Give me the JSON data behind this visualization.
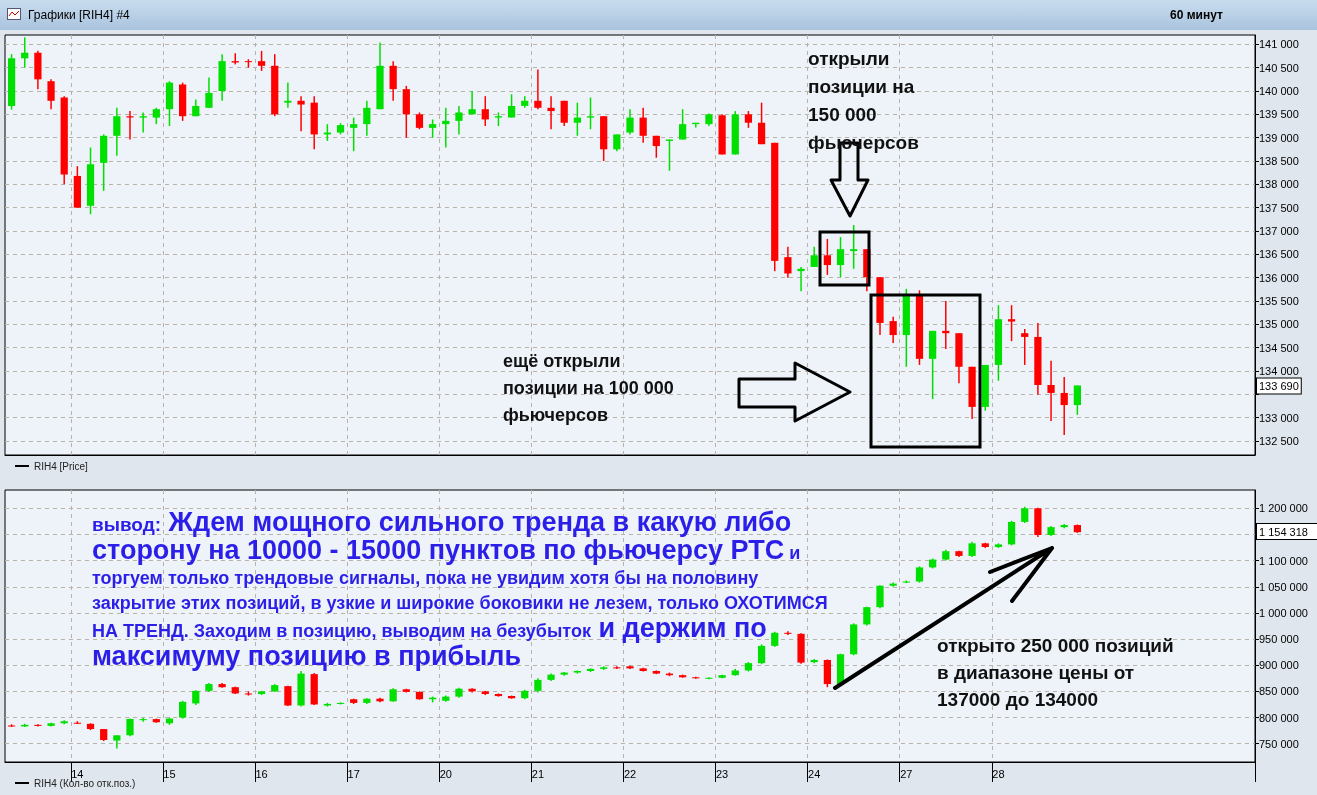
{
  "chart_data": [
    {
      "type": "candlestick",
      "title": "Графики [RIH4] #4",
      "subtitle": "60 минут",
      "categories": [
        null,
        null,
        null,
        null,
        null,
        "14",
        null,
        null,
        null,
        null,
        null,
        null,
        "15",
        null,
        null,
        null,
        null,
        null,
        null,
        "16",
        null,
        null,
        null,
        null,
        null,
        null,
        "17",
        null,
        null,
        null,
        null,
        null,
        null,
        "20",
        null,
        null,
        null,
        null,
        null,
        null,
        "21",
        null,
        null,
        null,
        null,
        null,
        null,
        "22",
        null,
        null,
        null,
        null,
        null,
        null,
        "23",
        null,
        null,
        null,
        null,
        null,
        null,
        "24",
        null,
        null,
        null,
        null,
        null,
        null,
        "27",
        null,
        null,
        null,
        null,
        null,
        null,
        "28",
        null,
        null,
        null,
        null,
        null,
        null,
        null,
        null,
        null,
        null,
        null,
        null,
        null,
        null,
        null,
        null,
        null,
        null,
        null
      ],
      "series": [
        {
          "name": "RIH4 [Price]",
          "ohlc": [
            [
              139680,
              140790,
              139600,
              140700
            ],
            [
              140700,
              141150,
              140500,
              140820
            ],
            [
              140820,
              140860,
              140040,
              140250
            ],
            [
              140210,
              140250,
              139610,
              139790
            ],
            [
              139860,
              139890,
              138000,
              138210
            ],
            [
              138180,
              138390,
              137500,
              137500
            ],
            [
              137540,
              138790,
              137360,
              138430
            ],
            [
              138460,
              139070,
              137860,
              139040
            ],
            [
              139040,
              139640,
              138610,
              139460
            ],
            [
              139460,
              139570,
              138960,
              139430
            ],
            [
              139430,
              139540,
              139110,
              139460
            ],
            [
              139430,
              139640,
              139290,
              139610
            ],
            [
              139610,
              140210,
              139250,
              140180
            ],
            [
              140140,
              140180,
              139360,
              139460
            ],
            [
              139460,
              139820,
              139460,
              139680
            ],
            [
              139640,
              140290,
              139640,
              139960
            ],
            [
              140000,
              140790,
              139790,
              140640
            ],
            [
              140640,
              140810,
              140570,
              140610
            ],
            [
              140640,
              140680,
              140500,
              140630
            ],
            [
              140640,
              140860,
              140430,
              140540
            ],
            [
              140540,
              140790,
              139460,
              139500
            ],
            [
              139750,
              140180,
              139640,
              139790
            ],
            [
              139790,
              139890,
              139140,
              139710
            ],
            [
              139750,
              139890,
              138750,
              139070
            ],
            [
              139070,
              139290,
              138930,
              139110
            ],
            [
              139110,
              139310,
              139070,
              139270
            ],
            [
              139210,
              139430,
              138710,
              139290
            ],
            [
              139290,
              139790,
              139040,
              139640
            ],
            [
              139610,
              141040,
              139610,
              140540
            ],
            [
              140540,
              140640,
              139790,
              140040
            ],
            [
              140040,
              140110,
              139000,
              139500
            ],
            [
              139500,
              139540,
              139180,
              139210
            ],
            [
              139210,
              139390,
              139000,
              139290
            ],
            [
              139290,
              139640,
              138790,
              139360
            ],
            [
              139360,
              139680,
              139070,
              139540
            ],
            [
              139500,
              140000,
              139500,
              139610
            ],
            [
              139610,
              139890,
              139250,
              139390
            ],
            [
              139430,
              139540,
              139250,
              139460
            ],
            [
              139430,
              139930,
              139430,
              139680
            ],
            [
              139680,
              139890,
              139640,
              139790
            ],
            [
              139790,
              140460,
              139610,
              139640
            ],
            [
              139640,
              139890,
              139180,
              139570
            ],
            [
              139790,
              139790,
              139250,
              139320
            ],
            [
              139320,
              139750,
              139040,
              139430
            ],
            [
              139430,
              139860,
              139180,
              139460
            ],
            [
              139460,
              139460,
              138500,
              138750
            ],
            [
              138750,
              139070,
              138710,
              139070
            ],
            [
              139110,
              139610,
              139070,
              139430
            ],
            [
              139430,
              139640,
              138890,
              139040
            ],
            [
              139040,
              139040,
              138570,
              138820
            ],
            [
              138930,
              138960,
              138290,
              138960
            ],
            [
              138960,
              139610,
              138960,
              139290
            ],
            [
              139290,
              139320,
              139220,
              139320
            ],
            [
              139290,
              139520,
              139250,
              139500
            ],
            [
              139480,
              139500,
              138640,
              138640
            ],
            [
              138640,
              139570,
              138640,
              139500
            ],
            [
              139500,
              139570,
              139210,
              139320
            ],
            [
              139320,
              139750,
              138860,
              138860
            ],
            [
              138890,
              138890,
              136140,
              136360
            ],
            [
              136440,
              136660,
              136000,
              136090
            ],
            [
              136140,
              136230,
              135710,
              136190
            ],
            [
              136230,
              136660,
              136230,
              136480
            ],
            [
              136480,
              136830,
              136060,
              136270
            ],
            [
              136270,
              136870,
              136010,
              136610
            ],
            [
              136570,
              137130,
              136190,
              136610
            ],
            [
              136610,
              136610,
              135710,
              136010
            ],
            [
              136010,
              136010,
              134770,
              135030
            ],
            [
              135070,
              135160,
              134600,
              134770
            ],
            [
              134770,
              135760,
              134090,
              135630
            ],
            [
              135630,
              135730,
              134130,
              134260
            ],
            [
              134260,
              134860,
              133400,
              134860
            ],
            [
              134860,
              135500,
              134470,
              134810
            ],
            [
              134810,
              134810,
              133740,
              134090
            ],
            [
              134090,
              134090,
              132970,
              133230
            ],
            [
              133230,
              134130,
              133150,
              134130
            ],
            [
              134130,
              135410,
              133790,
              135110
            ],
            [
              135110,
              135410,
              134640,
              135060
            ],
            [
              134810,
              134900,
              134130,
              134730
            ],
            [
              134730,
              135030,
              133490,
              133700
            ],
            [
              133700,
              134220,
              132930,
              133530
            ],
            [
              133530,
              133870,
              132630,
              133270
            ],
            [
              133270,
              133690,
              133060,
              133690
            ],
            null,
            null,
            null,
            null,
            null,
            null,
            null,
            null,
            null,
            null,
            null,
            null,
            null
          ],
          "colors": [
            "#00e000",
            "#00e000",
            "#ff0000",
            "#ff0000",
            "#ff0000",
            "#ff0000",
            "#00e000",
            "#00e000",
            "#00e000",
            "#ff0000",
            "#00e000",
            "#00e000",
            "#00e000",
            "#ff0000",
            "#00e000",
            "#00e000",
            "#00e000",
            "#ff0000",
            "#ff0000",
            "#ff0000",
            "#ff0000",
            "#00e000",
            "#ff0000",
            "#ff0000",
            "#00e000",
            "#00e000",
            "#00e000",
            "#00e000",
            "#00e000",
            "#ff0000",
            "#ff0000",
            "#ff0000",
            "#00e000",
            "#00e000",
            "#00e000",
            "#00e000",
            "#ff0000",
            "#00e000",
            "#00e000",
            "#00e000",
            "#ff0000",
            "#ff0000",
            "#ff0000",
            "#00e000",
            "#00e000",
            "#ff0000",
            "#00e000",
            "#00e000",
            "#ff0000",
            "#ff0000",
            "#00e000",
            "#00e000",
            "#00e000",
            "#00e000",
            "#ff0000",
            "#00e000",
            "#ff0000",
            "#ff0000",
            "#ff0000",
            "#ff0000",
            "#00e000",
            "#00e000",
            "#ff0000",
            "#00e000",
            "#00e000",
            "#ff0000",
            "#ff0000",
            "#ff0000",
            "#00e000",
            "#ff0000",
            "#00e000",
            "#ff0000",
            "#ff0000",
            "#ff0000",
            "#00e000",
            "#00e000",
            "#ff0000",
            "#ff0000",
            "#ff0000",
            "#ff0000",
            "#ff0000",
            "#00e000",
            null,
            null,
            null,
            null,
            null,
            null,
            null,
            null,
            null,
            null,
            null,
            null,
            null
          ]
        }
      ],
      "ylim": [
        132200,
        141200
      ],
      "yticks": [
        {
          "value": 132500,
          "label": "132 500"
        },
        {
          "value": 133000,
          "label": "133 000"
        },
        {
          "value": 133500,
          "label": null
        },
        {
          "value": 134000,
          "label": "134 000"
        },
        {
          "value": 134500,
          "label": "134 500"
        },
        {
          "value": 135000,
          "label": "135 000"
        },
        {
          "value": 135500,
          "label": "135 500"
        },
        {
          "value": 136000,
          "label": "136 000"
        },
        {
          "value": 136500,
          "label": "136 500"
        },
        {
          "value": 137000,
          "label": "137 000"
        },
        {
          "value": 137500,
          "label": "137 500"
        },
        {
          "value": 138000,
          "label": "138 000"
        },
        {
          "value": 138500,
          "label": "138 500"
        },
        {
          "value": 139000,
          "label": "139 000"
        },
        {
          "value": 139500,
          "label": "139 500"
        },
        {
          "value": 140000,
          "label": "140 000"
        },
        {
          "value": 140500,
          "label": "140 500"
        },
        {
          "value": 141000,
          "label": "141 000"
        }
      ],
      "tick_labels": "y",
      "grid": true,
      "legend": "bottom left",
      "annotations": [
        "открыли\nпозиции на\n150 000\nфьючерсов",
        "ещё открыли\nпозиции на  100 000\nфьючерсов",
        {
          "text": "133 690",
          "y": 133690
        }
      ]
    },
    {
      "type": "candlestick",
      "categories": [
        null,
        null,
        null,
        null,
        null,
        "14",
        null,
        null,
        null,
        null,
        null,
        null,
        "15",
        null,
        null,
        null,
        null,
        null,
        null,
        "16",
        null,
        null,
        null,
        null,
        null,
        null,
        "17",
        null,
        null,
        null,
        null,
        null,
        null,
        "20",
        null,
        null,
        null,
        null,
        null,
        null,
        "21",
        null,
        null,
        null,
        null,
        null,
        null,
        "22",
        null,
        null,
        null,
        null,
        null,
        null,
        "23",
        null,
        null,
        null,
        null,
        null,
        null,
        "24",
        null,
        null,
        null,
        null,
        null,
        null,
        "27",
        null,
        null,
        null,
        null,
        null,
        null,
        "28",
        null,
        null,
        null,
        null,
        null,
        null,
        null,
        null,
        null,
        null,
        null,
        null,
        null,
        null,
        null,
        null,
        null,
        null,
        null
      ],
      "series": [
        {
          "name": "RIH4 (Кол-во отк.поз.)",
          "ohlc": [
            [
              785000,
              787000,
              782000,
              783000
            ],
            [
              783000,
              788000,
              782000,
              786000
            ],
            [
              786000,
              787000,
              783000,
              784000
            ],
            [
              784000,
              790000,
              783000,
              789000
            ],
            [
              789000,
              795000,
              787000,
              793000
            ],
            [
              790000,
              793000,
              788000,
              789000
            ],
            [
              788000,
              789000,
              776000,
              778000
            ],
            [
              778000,
              778000,
              755000,
              757000
            ],
            [
              756000,
              766000,
              741000,
              766000
            ],
            [
              766000,
              798000,
              764000,
              797000
            ],
            [
              795000,
              799000,
              792000,
              797000
            ],
            [
              797000,
              798000,
              790000,
              791000
            ],
            [
              789000,
              800000,
              786000,
              798000
            ],
            [
              800000,
              832000,
              798000,
              830000
            ],
            [
              827000,
              852000,
              824000,
              851000
            ],
            [
              851000,
              866000,
              849000,
              864000
            ],
            [
              864000,
              866000,
              857000,
              858000
            ],
            [
              858000,
              859000,
              845000,
              846000
            ],
            [
              846000,
              850000,
              842000,
              844000
            ],
            [
              845000,
              851000,
              843000,
              850000
            ],
            [
              850000,
              864000,
              849000,
              862000
            ],
            [
              860000,
              861000,
              822000,
              823000
            ],
            [
              823000,
              889000,
              821000,
              884000
            ],
            [
              883000,
              885000,
              824000,
              825000
            ],
            [
              823000,
              828000,
              821000,
              826000
            ],
            [
              826000,
              829000,
              825000,
              828000
            ],
            [
              835000,
              836000,
              826000,
              828000
            ],
            [
              828000,
              837000,
              826000,
              836000
            ],
            [
              836000,
              838000,
              829000,
              831000
            ],
            [
              831000,
              856000,
              830000,
              854000
            ],
            [
              854000,
              855000,
              848000,
              849000
            ],
            [
              849000,
              850000,
              834000,
              835000
            ],
            [
              835000,
              840000,
              829000,
              838000
            ],
            [
              832000,
              842000,
              830000,
              840000
            ],
            [
              840000,
              857000,
              838000,
              855000
            ],
            [
              855000,
              856000,
              848000,
              850000
            ],
            [
              850000,
              851000,
              843000,
              845000
            ],
            [
              845000,
              846000,
              840000,
              841000
            ],
            [
              841000,
              842000,
              836000,
              837000
            ],
            [
              837000,
              853000,
              835000,
              851000
            ],
            [
              851000,
              875000,
              848000,
              872000
            ],
            [
              872000,
              884000,
              870000,
              882000
            ],
            [
              882000,
              887000,
              880000,
              886000
            ],
            [
              886000,
              890000,
              884000,
              889000
            ],
            [
              889000,
              894000,
              887000,
              893000
            ],
            [
              893000,
              898000,
              891000,
              896000
            ],
            [
              896000,
              898000,
              893000,
              894000
            ],
            [
              898000,
              899000,
              893000,
              894000
            ],
            [
              894000,
              895000,
              888000,
              889000
            ],
            [
              889000,
              890000,
              883000,
              884000
            ],
            [
              884000,
              886000,
              879000,
              881000
            ],
            [
              881000,
              882000,
              876000,
              877000
            ],
            [
              877000,
              878000,
              874000,
              875000
            ],
            [
              875000,
              877000,
              873000,
              876000
            ],
            [
              876000,
              882000,
              875000,
              881000
            ],
            [
              881000,
              893000,
              880000,
              890000
            ],
            [
              890000,
              906000,
              888000,
              904000
            ],
            [
              904000,
              940000,
              902000,
              937000
            ],
            [
              937000,
              964000,
              935000,
              962000
            ],
            [
              962000,
              965000,
              958000,
              960000
            ],
            [
              960000,
              961000,
              903000,
              905000
            ],
            [
              906000,
              912000,
              904000,
              910000
            ],
            [
              910000,
              911000,
              858000,
              864000
            ],
            [
              864000,
              922000,
              862000,
              921000
            ],
            [
              921000,
              980000,
              919000,
              978000
            ],
            [
              978000,
              1012000,
              976000,
              1011000
            ],
            [
              1011000,
              1053000,
              1009000,
              1052000
            ],
            [
              1052000,
              1058000,
              1050000,
              1056000
            ],
            [
              1058000,
              1062000,
              1057000,
              1060000
            ],
            [
              1060000,
              1089000,
              1058000,
              1087000
            ],
            [
              1087000,
              1104000,
              1085000,
              1102000
            ],
            [
              1102000,
              1121000,
              1100000,
              1118000
            ],
            [
              1118000,
              1119000,
              1107000,
              1109000
            ],
            [
              1109000,
              1136000,
              1107000,
              1133000
            ],
            [
              1133000,
              1134000,
              1124000,
              1126000
            ],
            [
              1126000,
              1133000,
              1124000,
              1131000
            ],
            [
              1131000,
              1176000,
              1129000,
              1174000
            ],
            [
              1174000,
              1203000,
              1172000,
              1200000
            ],
            [
              1200000,
              1201000,
              1145000,
              1149000
            ],
            [
              1149000,
              1166000,
              1147000,
              1164000
            ],
            [
              1164000,
              1170000,
              1162000,
              1168000
            ],
            [
              1168000,
              1169000,
              1153000,
              1154318
            ],
            null,
            null,
            null,
            null,
            null,
            null,
            null,
            null,
            null,
            null,
            null,
            null,
            null
          ],
          "colors": [
            "#ff0000",
            "#00e000",
            "#ff0000",
            "#00e000",
            "#00e000",
            "#ff0000",
            "#ff0000",
            "#ff0000",
            "#00e000",
            "#00e000",
            "#00e000",
            "#ff0000",
            "#00e000",
            "#00e000",
            "#00e000",
            "#00e000",
            "#ff0000",
            "#ff0000",
            "#ff0000",
            "#00e000",
            "#00e000",
            "#ff0000",
            "#00e000",
            "#ff0000",
            "#00e000",
            "#00e000",
            "#ff0000",
            "#00e000",
            "#ff0000",
            "#00e000",
            "#ff0000",
            "#ff0000",
            "#00e000",
            "#00e000",
            "#00e000",
            "#ff0000",
            "#ff0000",
            "#ff0000",
            "#ff0000",
            "#00e000",
            "#00e000",
            "#00e000",
            "#00e000",
            "#00e000",
            "#00e000",
            "#00e000",
            "#ff0000",
            "#ff0000",
            "#ff0000",
            "#ff0000",
            "#ff0000",
            "#ff0000",
            "#ff0000",
            "#00e000",
            "#00e000",
            "#00e000",
            "#00e000",
            "#00e000",
            "#00e000",
            "#ff0000",
            "#ff0000",
            "#00e000",
            "#ff0000",
            "#00e000",
            "#00e000",
            "#00e000",
            "#00e000",
            "#00e000",
            "#00e000",
            "#00e000",
            "#00e000",
            "#00e000",
            "#ff0000",
            "#00e000",
            "#ff0000",
            "#00e000",
            "#00e000",
            "#00e000",
            "#ff0000",
            "#00e000",
            "#00e000",
            "#ff0000",
            null,
            null,
            null,
            null,
            null,
            null,
            null,
            null,
            null,
            null,
            null,
            null,
            null
          ]
        }
      ],
      "ylim": [
        715000,
        1235000
      ],
      "yticks": [
        {
          "value": 750000,
          "label": "750 000"
        },
        {
          "value": 800000,
          "label": "800 000"
        },
        {
          "value": 850000,
          "label": "850 000"
        },
        {
          "value": 900000,
          "label": "900 000"
        },
        {
          "value": 950000,
          "label": "950 000"
        },
        {
          "value": 1000000,
          "label": "1 000 000"
        },
        {
          "value": 1050000,
          "label": "1 050 000"
        },
        {
          "value": 1100000,
          "label": "1 100 000"
        },
        {
          "value": 1150000,
          "label": null
        },
        {
          "value": 1200000,
          "label": "1 200 000"
        }
      ],
      "grid": true,
      "legend": "bottom left",
      "annotations": [
        "вывод:",
        "Ждем мощного сильного тренда в какую либо сторону на 10000 - 15000 пунктов по фьючерсу РТС",
        "и торгуем только трендовые сигналы, пока не увидим хотя бы на половину закрытие этих позиций, в узкие и широкие боковики не лезем, только ОХОТИМСЯ НА ТРЕНД. Заходим в позицию, выводим на безубыток",
        "и держим по максимуму позицию в прибыль",
        "открыто  250 000 позиций\nв диапазоне цены от\n137000 до 134000",
        "1 154 318"
      ]
    }
  ]
}
